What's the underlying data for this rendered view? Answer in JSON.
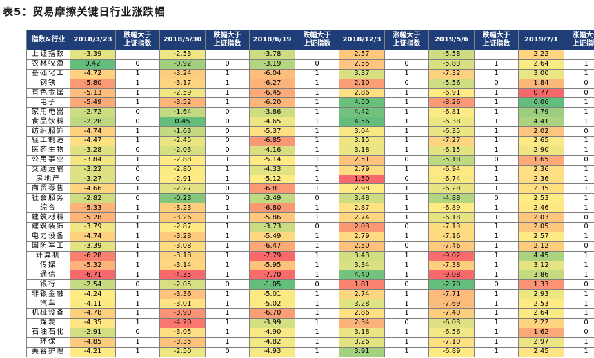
{
  "title": "表5：贸易摩擦关键日行业涨跌幅",
  "colors": {
    "header_bg": "#1f3e78",
    "low": "#f8696b",
    "mid": "#ffeb84",
    "high": "#63be7b"
  },
  "headers": [
    "指数&行业",
    "2018/3/23",
    "跌幅大于上证指数",
    "2018/5/30",
    "跌幅大于上证指数",
    "2018/6/19",
    "跌幅大于上证指数",
    "2018/12/3",
    "涨幅大于上证指数",
    "2019/5/6",
    "跌幅大于上证指数",
    "2019/7/1",
    "涨幅大于上证指数"
  ],
  "rows": [
    [
      "上证指数",
      "-3.39",
      "",
      "-2.53",
      "",
      "-3.78",
      "",
      "2.57",
      "",
      "-5.58",
      "",
      "2.22",
      ""
    ],
    [
      "农林牧渔",
      "0.42",
      "0",
      "-0.92",
      "0",
      "-3.19",
      "0",
      "2.55",
      "0",
      "-5.83",
      "1",
      "2.64",
      "1"
    ],
    [
      "基础化工",
      "-4.72",
      "1",
      "-3.24",
      "1",
      "-6.04",
      "1",
      "3.37",
      "1",
      "-7.32",
      "1",
      "3.00",
      "1"
    ],
    [
      "钢铁",
      "-5.80",
      "1",
      "-3.17",
      "1",
      "-6.27",
      "1",
      "2.10",
      "0",
      "-5.56",
      "0",
      "1.84",
      "0"
    ],
    [
      "有色金属",
      "-5.13",
      "1",
      "-2.59",
      "1",
      "-6.45",
      "1",
      "2.86",
      "1",
      "-6.91",
      "1",
      "0.77",
      "0"
    ],
    [
      "电子",
      "-5.49",
      "1",
      "-3.52",
      "1",
      "-6.20",
      "1",
      "4.50",
      "1",
      "-8.26",
      "1",
      "6.06",
      "1"
    ],
    [
      "家用电器",
      "-2.72",
      "0",
      "-1.64",
      "0",
      "-3.86",
      "1",
      "4.42",
      "1",
      "-6.81",
      "1",
      "4.79",
      "1"
    ],
    [
      "食品饮料",
      "-2.28",
      "0",
      "0.45",
      "0",
      "-4.65",
      "1",
      "4.56",
      "1",
      "-6.38",
      "1",
      "4.41",
      "1"
    ],
    [
      "纺织服饰",
      "-4.74",
      "1",
      "-1.63",
      "0",
      "-5.37",
      "1",
      "3.04",
      "1",
      "-6.35",
      "1",
      "2.02",
      "0"
    ],
    [
      "轻工制造",
      "-4.47",
      "1",
      "-2.45",
      "0",
      "-6.85",
      "1",
      "3.15",
      "1",
      "-7.27",
      "1",
      "2.65",
      "1"
    ],
    [
      "医药生物",
      "-3.28",
      "0",
      "-2.03",
      "0",
      "-4.16",
      "1",
      "3.18",
      "1",
      "-6.15",
      "1",
      "2.90",
      "1"
    ],
    [
      "公用事业",
      "-3.84",
      "1",
      "-2.88",
      "1",
      "-5.14",
      "1",
      "2.51",
      "0",
      "-5.18",
      "0",
      "1.65",
      "0"
    ],
    [
      "交通运输",
      "-3.22",
      "0",
      "-2.80",
      "1",
      "-4.33",
      "1",
      "2.79",
      "1",
      "-6.94",
      "1",
      "2.36",
      "1"
    ],
    [
      "房地产",
      "-3.27",
      "0",
      "-2.91",
      "1",
      "-5.12",
      "1",
      "1.50",
      "0",
      "-6.74",
      "1",
      "2.36",
      "1"
    ],
    [
      "商贸零售",
      "-4.66",
      "1",
      "-2.27",
      "0",
      "-6.81",
      "1",
      "2.98",
      "1",
      "-6.28",
      "1",
      "2.35",
      "1"
    ],
    [
      "社会服务",
      "-2.82",
      "0",
      "-0.23",
      "0",
      "-3.49",
      "0",
      "3.48",
      "1",
      "-4.88",
      "0",
      "2.53",
      "1"
    ],
    [
      "综合",
      "-5.33",
      "1",
      "-3.23",
      "1",
      "-6.80",
      "1",
      "2.87",
      "1",
      "-6.89",
      "1",
      "2.46",
      "1"
    ],
    [
      "建筑材料",
      "-5.28",
      "1",
      "-3.26",
      "1",
      "-5.86",
      "1",
      "2.74",
      "1",
      "-6.18",
      "1",
      "2.03",
      "0"
    ],
    [
      "建筑装饰",
      "-3.79",
      "1",
      "-2.87",
      "1",
      "-3.73",
      "0",
      "2.03",
      "0",
      "-7.13",
      "1",
      "2.05",
      "0"
    ],
    [
      "电力设备",
      "-4.74",
      "1",
      "-3.28",
      "1",
      "-5.49",
      "1",
      "2.79",
      "1",
      "-7.16",
      "1",
      "2.57",
      "1"
    ],
    [
      "国防军工",
      "-3.39",
      "1",
      "-3.08",
      "1",
      "-6.47",
      "1",
      "2.50",
      "0",
      "-7.46",
      "1",
      "2.12",
      "0"
    ],
    [
      "计算机",
      "-6.28",
      "1",
      "-3.18",
      "1",
      "-7.79",
      "1",
      "3.43",
      "1",
      "-9.02",
      "1",
      "4.45",
      "1"
    ],
    [
      "传媒",
      "-5.32",
      "1",
      "-3.14",
      "1",
      "-5.95",
      "1",
      "3.34",
      "1",
      "-7.38",
      "1",
      "3.12",
      "1"
    ],
    [
      "通信",
      "-6.71",
      "1",
      "-4.35",
      "1",
      "-7.70",
      "1",
      "4.40",
      "1",
      "-9.08",
      "1",
      "3.86",
      "1"
    ],
    [
      "银行",
      "-2.54",
      "0",
      "-2.05",
      "0",
      "-1.05",
      "0",
      "1.81",
      "0",
      "-2.70",
      "0",
      "1.33",
      "0"
    ],
    [
      "非银金融",
      "-4.24",
      "1",
      "-3.36",
      "1",
      "-5.01",
      "1",
      "2.74",
      "1",
      "-7.71",
      "1",
      "2.93",
      "1"
    ],
    [
      "汽车",
      "-4.11",
      "1",
      "-3.01",
      "1",
      "-5.02",
      "1",
      "3.28",
      "1",
      "-7.69",
      "1",
      "2.53",
      "1"
    ],
    [
      "机械设备",
      "-4.78",
      "1",
      "-3.90",
      "1",
      "-6.70",
      "1",
      "2.86",
      "1",
      "-7.40",
      "1",
      "2.64",
      "1"
    ],
    [
      "煤炭",
      "-4.35",
      "1",
      "-4.20",
      "1",
      "-3.99",
      "1",
      "2.34",
      "0",
      "-6.03",
      "1",
      "2.22",
      "0"
    ],
    [
      "石油石化",
      "-2.91",
      "0",
      "-3.05",
      "1",
      "-4.90",
      "1",
      "3.18",
      "1",
      "-6.56",
      "1",
      "1.62",
      "0"
    ],
    [
      "环保",
      "-4.85",
      "1",
      "-3.35",
      "1",
      "-4.82",
      "1",
      "3.26",
      "1",
      "-7.10",
      "1",
      "2.97",
      "1"
    ],
    [
      "美容护理",
      "-4.21",
      "1",
      "-2.50",
      "0",
      "-4.93",
      "1",
      "3.91",
      "1",
      "-6.89",
      "1",
      "2.45",
      "1"
    ]
  ]
}
